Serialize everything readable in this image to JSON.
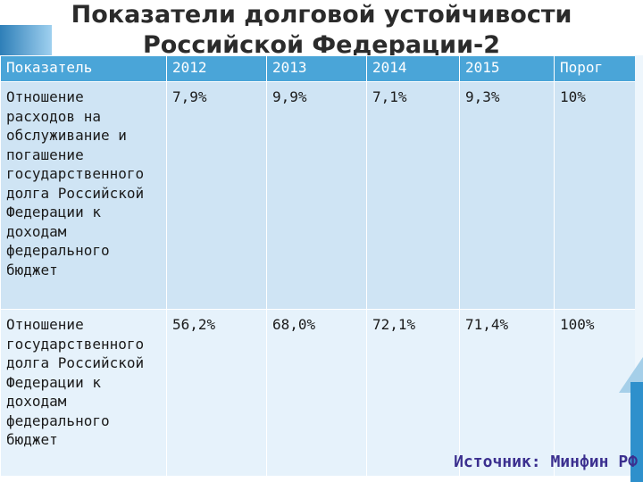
{
  "slide": {
    "title_line1": "Показатели долговой устойчивости",
    "title_line2": "Российской Федерации-2",
    "source": "Источник: Минфин РФ"
  },
  "table": {
    "headers": [
      "Показатель",
      "2012",
      "2013",
      "2014",
      "2015",
      "Порог"
    ],
    "rows": [
      {
        "indicator": "Отношение расходов на обслуживание и погашение государственного долга Российской Федерации к доходам федерального бюджет",
        "values": [
          "7,9%",
          "9,9%",
          "7,1%",
          "9,3%",
          "10%"
        ]
      },
      {
        "indicator": "Отношение государственного долга Российской Федерации к доходам федерального бюджет",
        "values": [
          "56,2%",
          "68,0%",
          "72,1%",
          "71,4%",
          "100%"
        ]
      }
    ]
  },
  "colors": {
    "header_bg": "#4aa5d8",
    "row1_bg": "#cfe4f4",
    "row2_bg": "#e6f2fb",
    "source_text": "#3b2f8f"
  }
}
